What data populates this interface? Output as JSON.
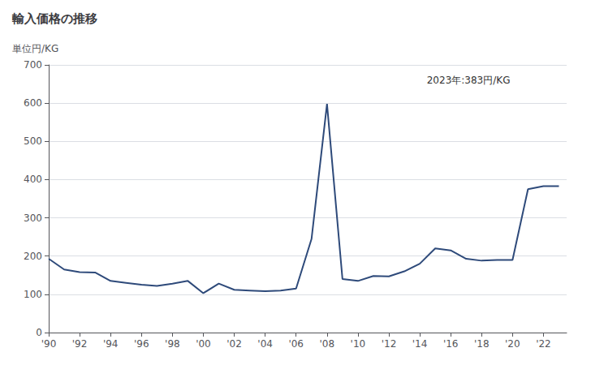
{
  "chart_data": {
    "type": "line",
    "title": "輸入価格の推移",
    "ylabel": "単位円/KG",
    "annotation": "2023年:383円/KG",
    "x": [
      1990,
      1991,
      1992,
      1993,
      1994,
      1995,
      1996,
      1997,
      1998,
      1999,
      2000,
      2001,
      2002,
      2003,
      2004,
      2005,
      2006,
      2007,
      2008,
      2009,
      2010,
      2011,
      2012,
      2013,
      2014,
      2015,
      2016,
      2017,
      2018,
      2019,
      2020,
      2021,
      2022,
      2023
    ],
    "values": [
      193,
      165,
      158,
      157,
      135,
      130,
      125,
      122,
      128,
      135,
      103,
      128,
      112,
      110,
      108,
      110,
      115,
      245,
      598,
      140,
      135,
      148,
      147,
      160,
      180,
      220,
      215,
      193,
      188,
      190,
      190,
      375,
      383,
      383
    ],
    "color": "#2e4a7a",
    "xlim": [
      1990,
      2023.5
    ],
    "xticks": [
      {
        "value": 1990,
        "label": "'90"
      },
      {
        "value": 1992,
        "label": "'92"
      },
      {
        "value": 1994,
        "label": "'94"
      },
      {
        "value": 1996,
        "label": "'96"
      },
      {
        "value": 1998,
        "label": "'98"
      },
      {
        "value": 2000,
        "label": "'00"
      },
      {
        "value": 2002,
        "label": "'02"
      },
      {
        "value": 2004,
        "label": "'04"
      },
      {
        "value": 2006,
        "label": "'06"
      },
      {
        "value": 2008,
        "label": "'08"
      },
      {
        "value": 2010,
        "label": "'10"
      },
      {
        "value": 2012,
        "label": "'12"
      },
      {
        "value": 2014,
        "label": "'14"
      },
      {
        "value": 2016,
        "label": "'16"
      },
      {
        "value": 2018,
        "label": "'18"
      },
      {
        "value": 2020,
        "label": "'20"
      },
      {
        "value": 2022,
        "label": "'22"
      }
    ],
    "ylim": [
      0,
      700
    ],
    "yticks": [
      0,
      100,
      200,
      300,
      400,
      500,
      600,
      700
    ],
    "grid": true
  }
}
